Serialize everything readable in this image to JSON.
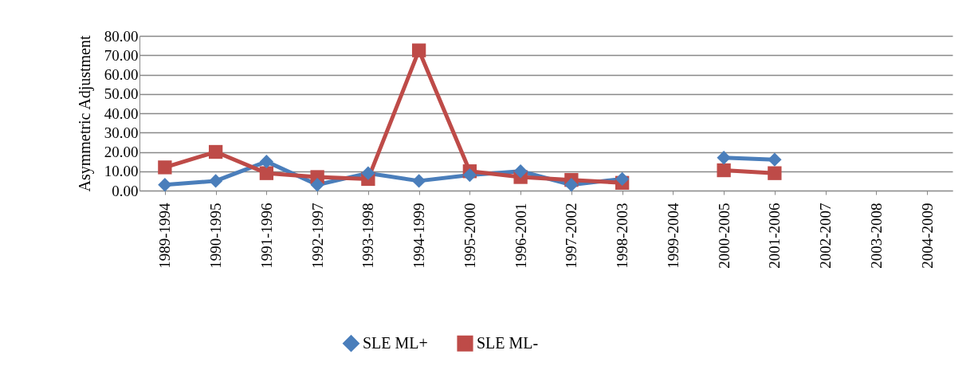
{
  "chart_data": {
    "type": "line",
    "ylabel": "Asymmetric Adjustment",
    "categories": [
      "1989-1994",
      "1990-1995",
      "1991-1996",
      "1992-1997",
      "1993-1998",
      "1994-1999",
      "1995-2000",
      "1996-2001",
      "1997-2002",
      "1998-2003",
      "1999-2004",
      "2000-2005",
      "2001-2006",
      "2002-2007",
      "2003-2008",
      "2004-2009"
    ],
    "series": [
      {
        "name": "SLE ML+",
        "color": "#4a7ebb",
        "marker": "diamond",
        "values": [
          3,
          5,
          15,
          3,
          9,
          5,
          8,
          10,
          3,
          6,
          null,
          17,
          16,
          null,
          null,
          null
        ]
      },
      {
        "name": "SLE ML-",
        "color": "#be4b48",
        "marker": "square",
        "values": [
          12,
          20,
          9,
          7,
          6,
          72.5,
          10,
          7,
          5.5,
          4,
          null,
          10.5,
          9,
          null,
          null,
          null
        ]
      }
    ],
    "ylim": [
      0,
      80
    ],
    "yticks": [
      {
        "value": 0,
        "label": "0.00"
      },
      {
        "value": 10,
        "label": "10.00"
      },
      {
        "value": 20,
        "label": "20.00"
      },
      {
        "value": 30,
        "label": "30.00"
      },
      {
        "value": 40,
        "label": "40.00"
      },
      {
        "value": 50,
        "label": "50.00"
      },
      {
        "value": 60,
        "label": "60.00"
      },
      {
        "value": 70,
        "label": "70.00"
      },
      {
        "value": 80,
        "label": "80.00"
      }
    ],
    "grid": "y",
    "legend": "bottom",
    "line_style": "solid"
  }
}
